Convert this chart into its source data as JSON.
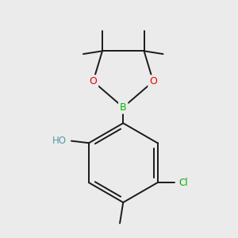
{
  "bg_color": "#ebebeb",
  "bond_color": "#1a1a1a",
  "bond_width": 1.4,
  "atom_colors": {
    "B": "#00bb00",
    "O": "#ee0000",
    "Cl": "#00aa00",
    "HO": "#5599aa"
  },
  "figsize": [
    3.0,
    3.0
  ],
  "dpi": 100,
  "xlim": [
    -1.8,
    2.2
  ],
  "ylim": [
    -2.8,
    2.8
  ]
}
